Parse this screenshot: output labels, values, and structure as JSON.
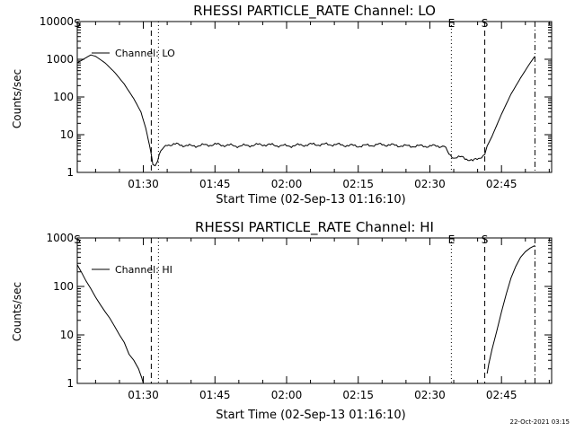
{
  "footer": {
    "timestamp": "22-Oct-2021 03:15"
  },
  "chart_data": [
    {
      "type": "line",
      "title": "RHESSI PARTICLE_RATE Channel: LO",
      "xlabel": "Start Time (02-Sep-13 01:16:10)",
      "ylabel": "Counts/sec",
      "yscale": "log",
      "ylim": [
        1,
        10000
      ],
      "yticks": [
        1,
        10,
        100,
        1000,
        10000
      ],
      "ytick_labels": [
        "1",
        "10",
        "100",
        "1000",
        "10000"
      ],
      "xlim": [
        "01:16:10",
        "02:55:30"
      ],
      "xticks": [
        "01:30",
        "01:45",
        "02:00",
        "02:15",
        "02:30",
        "02:45"
      ],
      "legend": {
        "label": "Channel: LO",
        "placement": "top-left"
      },
      "markers": [
        {
          "label": "S",
          "time": "01:16:10",
          "style": "none"
        },
        {
          "label": "",
          "time": "01:31:40",
          "style": "dashed"
        },
        {
          "label": "",
          "time": "01:33:10",
          "style": "dotted"
        },
        {
          "label": "E",
          "time": "02:34:30",
          "style": "dotted"
        },
        {
          "label": "S",
          "time": "02:41:30",
          "style": "dashed"
        },
        {
          "label": "",
          "time": "02:52:00",
          "style": "dash-dot"
        }
      ],
      "series": [
        {
          "name": "Channel: LO",
          "x": [
            "01:16:10",
            "01:18:00",
            "01:19:00",
            "01:20:00",
            "01:22:00",
            "01:24:00",
            "01:26:00",
            "01:28:00",
            "01:29:30",
            "01:30:30",
            "01:31:20",
            "01:31:40",
            "01:32:00",
            "01:32:30",
            "01:33:00",
            "01:33:20",
            "01:34:00",
            "01:35:00",
            "01:37:00",
            "01:40:00",
            "01:45:00",
            "01:50:00",
            "01:55:00",
            "02:00:00",
            "02:05:00",
            "02:10:00",
            "02:15:00",
            "02:20:00",
            "02:25:00",
            "02:30:00",
            "02:33:00",
            "02:34:00",
            "02:35:00",
            "02:37:00",
            "02:39:00",
            "02:40:30",
            "02:41:30",
            "02:42:00",
            "02:43:00",
            "02:45:00",
            "02:47:00",
            "02:49:00",
            "02:51:00",
            "02:52:00"
          ],
          "y": [
            800,
            1100,
            1300,
            1200,
            800,
            450,
            220,
            90,
            40,
            15,
            5,
            3,
            1.6,
            1.5,
            2,
            3,
            4,
            5.5,
            5.5,
            5,
            5.5,
            5,
            5.5,
            5,
            5.5,
            5.5,
            5,
            5.5,
            5,
            5,
            5,
            3,
            2.5,
            2.5,
            2,
            2.5,
            3,
            5,
            9,
            35,
            120,
            320,
            800,
            1200
          ]
        }
      ]
    },
    {
      "type": "line",
      "title": "RHESSI PARTICLE_RATE Channel: HI",
      "xlabel": "Start Time (02-Sep-13 01:16:10)",
      "ylabel": "Counts/sec",
      "yscale": "log",
      "ylim": [
        1,
        1000
      ],
      "yticks": [
        1,
        10,
        100,
        1000
      ],
      "ytick_labels": [
        "1",
        "10",
        "100",
        "1000"
      ],
      "xlim": [
        "01:16:10",
        "02:55:30"
      ],
      "xticks": [
        "01:30",
        "01:45",
        "02:00",
        "02:15",
        "02:30",
        "02:45"
      ],
      "legend": {
        "label": "Channel: HI",
        "placement": "top-left"
      },
      "markers": [
        {
          "label": "S",
          "time": "01:16:10",
          "style": "none"
        },
        {
          "label": "",
          "time": "01:31:40",
          "style": "dashed"
        },
        {
          "label": "",
          "time": "01:33:10",
          "style": "dotted"
        },
        {
          "label": "E",
          "time": "02:34:30",
          "style": "dotted"
        },
        {
          "label": "S",
          "time": "02:41:30",
          "style": "dashed"
        },
        {
          "label": "",
          "time": "02:52:00",
          "style": "dash-dot"
        }
      ],
      "series": [
        {
          "name": "Channel: HI",
          "segments": [
            {
              "x": [
                "01:16:10",
                "01:17:00",
                "01:18:00",
                "01:19:00",
                "01:20:00",
                "01:21:00",
                "01:22:00",
                "01:23:00",
                "01:24:00",
                "01:25:00",
                "01:26:00",
                "01:27:00",
                "01:28:00",
                "01:29:00",
                "01:29:40",
                "01:30:00"
              ],
              "y": [
                280,
                200,
                130,
                90,
                60,
                42,
                30,
                22,
                15,
                10,
                7,
                4,
                3,
                2,
                1.3,
                1
              ]
            },
            {
              "x": [
                "02:42:00",
                "02:42:20",
                "02:43:00",
                "02:44:00",
                "02:45:00",
                "02:46:00",
                "02:47:00",
                "02:48:00",
                "02:49:00",
                "02:50:00",
                "02:51:00",
                "02:52:00"
              ],
              "y": [
                1.6,
                2.5,
                5,
                12,
                30,
                70,
                150,
                260,
                400,
                520,
                620,
                700
              ]
            }
          ]
        }
      ]
    }
  ]
}
